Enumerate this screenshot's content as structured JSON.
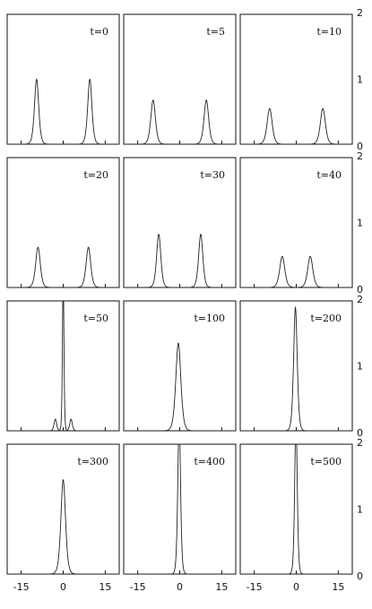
{
  "chart_data": {
    "type": "line",
    "title": "",
    "xlabel": "",
    "ylabel": "",
    "layout": "4x3 small multiples",
    "xlim": [
      -20,
      20
    ],
    "ylim": [
      0,
      2
    ],
    "xticks": [
      -15,
      0,
      15
    ],
    "xtick_labels": [
      "-15",
      "0",
      "15"
    ],
    "yticks": [
      0,
      1,
      2
    ],
    "ytick_labels": [
      "0",
      "1",
      "2"
    ],
    "panels": [
      {
        "label": "t=0",
        "peaks": [
          {
            "center": -9.5,
            "height": 1.0,
            "width": 1.0
          },
          {
            "center": 9.5,
            "height": 1.0,
            "width": 1.0
          }
        ]
      },
      {
        "label": "t=5",
        "peaks": [
          {
            "center": -9.5,
            "height": 0.68,
            "width": 1.1
          },
          {
            "center": 9.5,
            "height": 0.68,
            "width": 1.1
          }
        ]
      },
      {
        "label": "t=10",
        "peaks": [
          {
            "center": -9.5,
            "height": 0.55,
            "width": 1.2
          },
          {
            "center": 9.5,
            "height": 0.55,
            "width": 1.2
          }
        ]
      },
      {
        "label": "t=20",
        "peaks": [
          {
            "center": -9.0,
            "height": 0.62,
            "width": 1.1
          },
          {
            "center": 9.0,
            "height": 0.62,
            "width": 1.1
          }
        ]
      },
      {
        "label": "t=30",
        "peaks": [
          {
            "center": -7.5,
            "height": 0.82,
            "width": 1.0
          },
          {
            "center": 7.5,
            "height": 0.82,
            "width": 1.0
          }
        ]
      },
      {
        "label": "t=40",
        "peaks": [
          {
            "center": -5.0,
            "height": 0.48,
            "width": 1.2
          },
          {
            "center": 5.0,
            "height": 0.48,
            "width": 1.2
          }
        ]
      },
      {
        "label": "t=50",
        "peaks": [
          {
            "center": 0,
            "height": 2.4,
            "width": 0.35
          },
          {
            "center": -2.8,
            "height": 0.18,
            "width": 0.6
          },
          {
            "center": 2.8,
            "height": 0.18,
            "width": 0.6
          }
        ]
      },
      {
        "label": "t=100",
        "peaks": [
          {
            "center": -0.5,
            "height": 1.35,
            "width": 1.2
          }
        ]
      },
      {
        "label": "t=200",
        "peaks": [
          {
            "center": -0.3,
            "height": 1.9,
            "width": 0.85
          }
        ]
      },
      {
        "label": "t=300",
        "peaks": [
          {
            "center": 0.0,
            "height": 1.45,
            "width": 1.1
          }
        ]
      },
      {
        "label": "t=400",
        "peaks": [
          {
            "center": -0.2,
            "height": 2.4,
            "width": 0.65
          }
        ]
      },
      {
        "label": "t=500",
        "peaks": [
          {
            "center": -0.1,
            "height": 2.4,
            "width": 0.6
          }
        ]
      }
    ]
  }
}
